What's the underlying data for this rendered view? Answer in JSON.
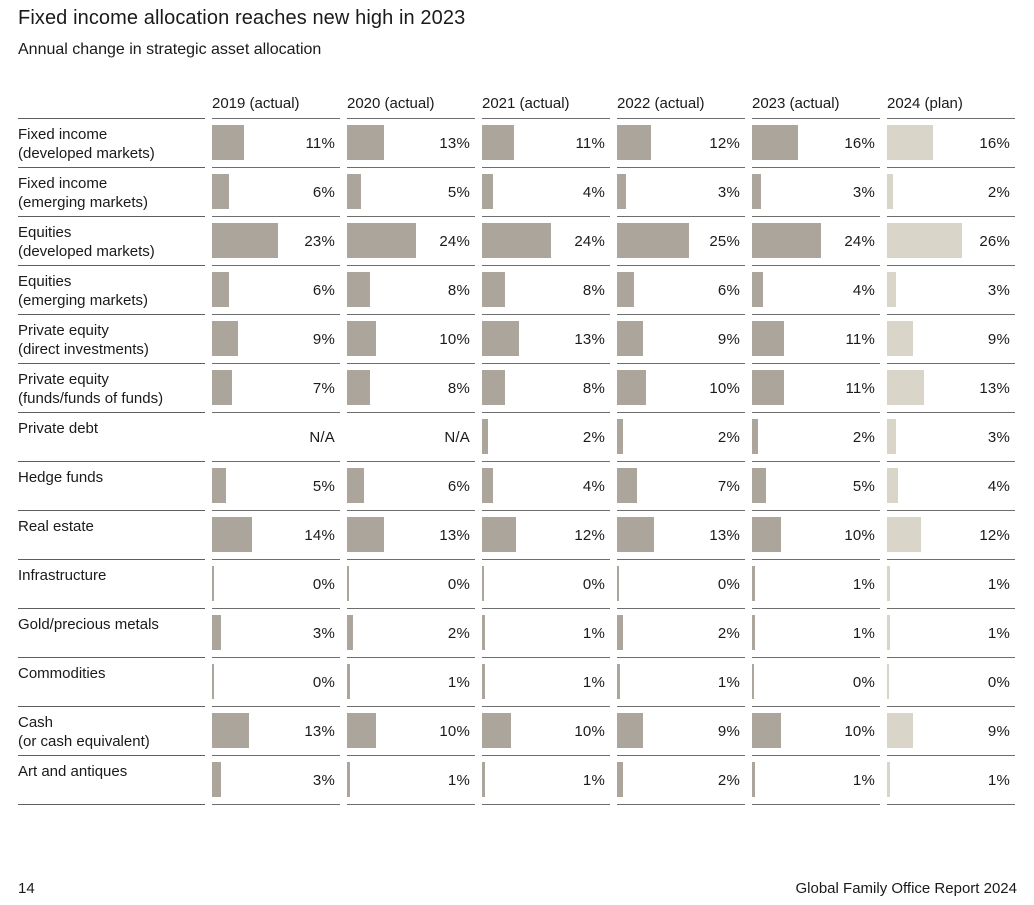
{
  "page": {
    "title": "Fixed income allocation reaches new high in 2023",
    "subtitle": "Annual change in strategic asset allocation",
    "footer": {
      "page_number": "14",
      "report_name": "Global Family Office Report 2024"
    }
  },
  "colors": {
    "actual_bar": "#aba59c",
    "plan_bar": "#d9d6c9",
    "separator_line": "#6e6e6e",
    "text": "#1a1a1a"
  },
  "chart_data": {
    "type": "bar",
    "title": "Fixed income allocation reaches new high in 2023",
    "subtitle": "Annual change in strategic asset allocation",
    "unit": "%",
    "na_text": "N/A",
    "legend": [
      "actual",
      "plan"
    ],
    "columns": [
      "2019 (actual)",
      "2020 (actual)",
      "2021 (actual)",
      "2022 (actual)",
      "2023 (actual)",
      "2024 (plan)"
    ],
    "rows": [
      {
        "label": [
          "Fixed income",
          "(developed markets)"
        ],
        "values": [
          11,
          13,
          11,
          12,
          16,
          16
        ]
      },
      {
        "label": [
          "Fixed income",
          "(emerging markets)"
        ],
        "values": [
          6,
          5,
          4,
          3,
          3,
          2
        ]
      },
      {
        "label": [
          "Equities",
          "(developed markets)"
        ],
        "values": [
          23,
          24,
          24,
          25,
          24,
          26
        ]
      },
      {
        "label": [
          "Equities",
          "(emerging markets)"
        ],
        "values": [
          6,
          8,
          8,
          6,
          4,
          3
        ]
      },
      {
        "label": [
          "Private equity",
          "(direct investments)"
        ],
        "values": [
          9,
          10,
          13,
          9,
          11,
          9
        ]
      },
      {
        "label": [
          "Private equity",
          "(funds/funds of funds)"
        ],
        "values": [
          7,
          8,
          8,
          10,
          11,
          13
        ]
      },
      {
        "label": [
          "Private debt"
        ],
        "values": [
          null,
          null,
          2,
          2,
          2,
          3
        ]
      },
      {
        "label": [
          "Hedge funds"
        ],
        "values": [
          5,
          6,
          4,
          7,
          5,
          4
        ]
      },
      {
        "label": [
          "Real estate"
        ],
        "values": [
          14,
          13,
          12,
          13,
          10,
          12
        ]
      },
      {
        "label": [
          "Infrastructure"
        ],
        "values": [
          0,
          0,
          0,
          0,
          1,
          1
        ]
      },
      {
        "label": [
          "Gold/precious metals"
        ],
        "values": [
          3,
          2,
          1,
          2,
          1,
          1
        ]
      },
      {
        "label": [
          "Commodities"
        ],
        "values": [
          0,
          1,
          1,
          1,
          0,
          0
        ]
      },
      {
        "label": [
          "Cash",
          "(or cash equivalent)"
        ],
        "values": [
          13,
          10,
          10,
          9,
          10,
          9
        ]
      },
      {
        "label": [
          "Art and antiques"
        ],
        "values": [
          3,
          1,
          1,
          2,
          1,
          1
        ]
      }
    ],
    "value_range_shown": [
      0,
      26
    ],
    "layout_hint": "table of horizontal bars, one column per year, value label right-aligned in each cell"
  }
}
